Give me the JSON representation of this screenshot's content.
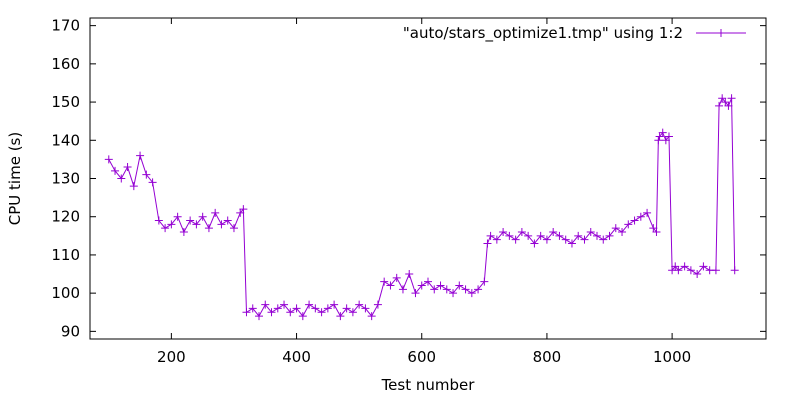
{
  "chart_data": {
    "type": "line",
    "title": "",
    "xlabel": "Test number",
    "ylabel": "CPU time (s)",
    "xlim": [
      70,
      1150
    ],
    "ylim": [
      88,
      172
    ],
    "xticks": [
      200,
      400,
      600,
      800,
      1000
    ],
    "yticks": [
      90,
      100,
      110,
      120,
      130,
      140,
      150,
      160,
      170
    ],
    "grid": false,
    "legend_position": "top-right",
    "series": [
      {
        "name": "\"auto/stars_optimize1.tmp\" using 1:2",
        "color": "#9400d3",
        "marker": "plus",
        "x": [
          100,
          110,
          120,
          130,
          140,
          150,
          160,
          170,
          180,
          190,
          200,
          210,
          220,
          230,
          240,
          250,
          260,
          270,
          280,
          290,
          300,
          310,
          315,
          320,
          330,
          340,
          350,
          360,
          370,
          380,
          390,
          400,
          410,
          420,
          430,
          440,
          450,
          460,
          470,
          480,
          490,
          500,
          510,
          520,
          530,
          540,
          550,
          560,
          570,
          580,
          590,
          600,
          610,
          620,
          630,
          640,
          650,
          660,
          670,
          680,
          690,
          700,
          705,
          710,
          720,
          730,
          740,
          750,
          760,
          770,
          780,
          790,
          800,
          810,
          820,
          830,
          840,
          850,
          860,
          870,
          880,
          890,
          900,
          910,
          920,
          930,
          940,
          950,
          960,
          970,
          975,
          978,
          980,
          985,
          990,
          995,
          1000,
          1005,
          1010,
          1020,
          1030,
          1040,
          1050,
          1060,
          1070,
          1075,
          1080,
          1085,
          1090,
          1095,
          1100
        ],
        "y": [
          135,
          132,
          130,
          133,
          128,
          136,
          131,
          129,
          119,
          117,
          118,
          120,
          116,
          119,
          118,
          120,
          117,
          121,
          118,
          119,
          117,
          121,
          122,
          95,
          96,
          94,
          97,
          95,
          96,
          97,
          95,
          96,
          94,
          97,
          96,
          95,
          96,
          97,
          94,
          96,
          95,
          97,
          96,
          94,
          97,
          103,
          102,
          104,
          101,
          105,
          100,
          102,
          103,
          101,
          102,
          101,
          100,
          102,
          101,
          100,
          101,
          103,
          113,
          115,
          114,
          116,
          115,
          114,
          116,
          115,
          113,
          115,
          114,
          116,
          115,
          114,
          113,
          115,
          114,
          116,
          115,
          114,
          115,
          117,
          116,
          118,
          119,
          120,
          121,
          117,
          116,
          140,
          141,
          142,
          140,
          141,
          106,
          107,
          106,
          107,
          106,
          105,
          107,
          106,
          106,
          149,
          151,
          150,
          149,
          151,
          106
        ]
      }
    ]
  }
}
